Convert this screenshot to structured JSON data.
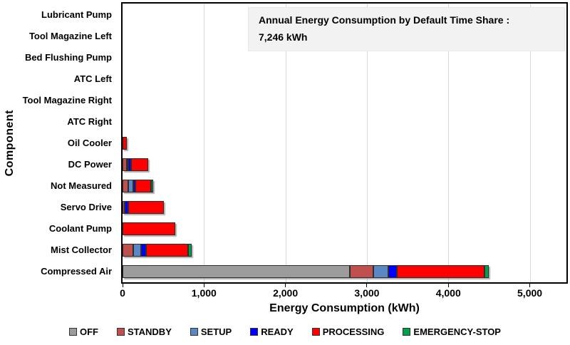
{
  "chart_data": {
    "type": "bar",
    "orientation": "horizontal",
    "stacked": true,
    "title": "Annual Energy Consumption by Default Time Share :",
    "title_value": "7,246 kWh",
    "total_kwh": 7246,
    "xlabel": "Energy Consumption (kWh)",
    "ylabel": "Component",
    "units": "kWh",
    "xlim": [
      0,
      5450
    ],
    "xticks": [
      0,
      1000,
      2000,
      3000,
      4000,
      5000
    ],
    "xtick_labels": [
      "0",
      "1,000",
      "2,000",
      "3,000",
      "4,000",
      "5,000"
    ],
    "grid": "vertical",
    "grid_color": "#d9d9d9",
    "legend_position": "bottom",
    "categories": [
      "Lubricant Pump",
      "Tool Magazine Left",
      "Bed Flushing Pump",
      "ATC Left",
      "Tool Magazine Right",
      "ATC Right",
      "Oil Cooler",
      "DC Power",
      "Not Measured",
      "Servo Drive",
      "Coolant Pump",
      "Mist Collector",
      "Compressed Air"
    ],
    "series": [
      {
        "name": "OFF",
        "color": "#9c9c9c",
        "values": [
          0,
          0,
          0,
          0,
          0,
          0,
          0,
          0,
          0,
          0,
          0,
          0,
          2790
        ]
      },
      {
        "name": "STANDBY",
        "color": "#c0504d",
        "values": [
          0,
          0,
          0,
          0,
          0,
          0,
          0,
          50,
          70,
          25,
          0,
          130,
          285
        ]
      },
      {
        "name": "SETUP",
        "color": "#5b87c5",
        "values": [
          0,
          0,
          0,
          0,
          0,
          0,
          0,
          15,
          60,
          0,
          0,
          100,
          190
        ]
      },
      {
        "name": "READY",
        "color": "#0000ff",
        "values": [
          0,
          0,
          0,
          0,
          0,
          0,
          0,
          40,
          30,
          45,
          0,
          55,
          100
        ]
      },
      {
        "name": "PROCESSING",
        "color": "#ff0000",
        "values": [
          0,
          0,
          0,
          0,
          0,
          0,
          56,
          205,
          190,
          440,
          650,
          520,
          1080
        ]
      },
      {
        "name": "EMERGENCY-STOP",
        "color": "#00a14b",
        "values": [
          0,
          0,
          0,
          0,
          0,
          0,
          0,
          0,
          25,
          0,
          0,
          45,
          50
        ]
      }
    ]
  }
}
